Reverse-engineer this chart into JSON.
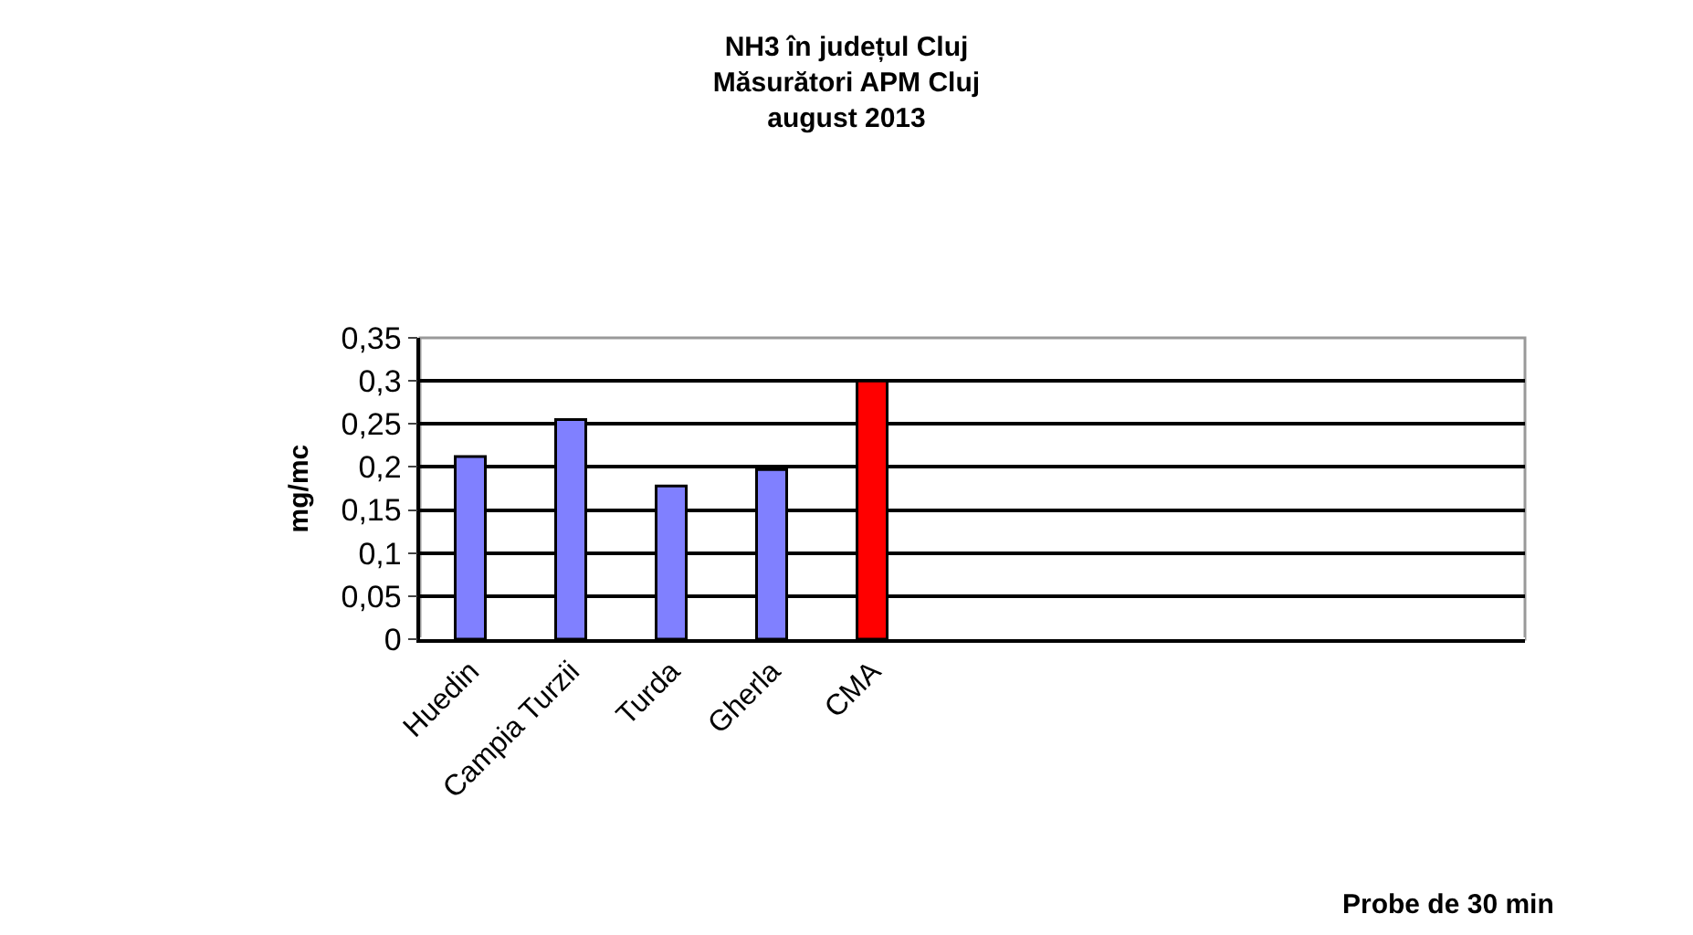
{
  "chart_data": {
    "type": "bar",
    "title": "NH3 în județul Cluj\nMăsurători APM Cluj\naugust 2013",
    "xlabel": "Probe de 30 min",
    "ylabel": "mg/mc",
    "categories": [
      "Huedin",
      "Campia Turzii",
      "Turda",
      "Gherla",
      "CMA",
      null,
      null,
      null,
      null,
      null,
      null
    ],
    "values": [
      0.212,
      0.255,
      0.178,
      0.197,
      0.3,
      null,
      null,
      null,
      null,
      null,
      null
    ],
    "colors": [
      "#8080ff",
      "#8080ff",
      "#8080ff",
      "#8080ff",
      "#ff0000",
      null,
      null,
      null,
      null,
      null,
      null
    ],
    "ylim": [
      0,
      0.35
    ],
    "yticks": [
      0,
      {
        "value": 0.05,
        "label": "0,05"
      },
      {
        "value": 0.1,
        "label": "0,1"
      },
      {
        "value": 0.15,
        "label": "0,15"
      },
      {
        "value": 0.2,
        "label": "0,2"
      },
      {
        "value": 0.25,
        "label": "0,25"
      },
      {
        "value": 0.3,
        "label": "0,3"
      },
      {
        "value": 0.35,
        "label": "0,35"
      }
    ],
    "grid": "y"
  }
}
